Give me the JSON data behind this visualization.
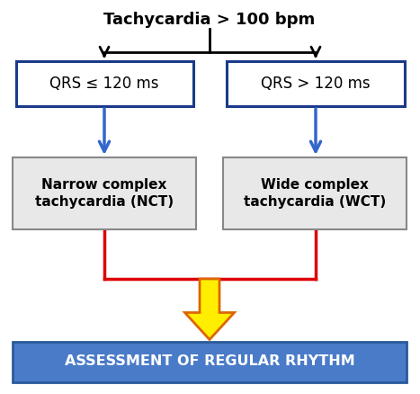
{
  "title": "Tachycardia > 100 bpm",
  "title_fontsize": 13,
  "title_fontweight": "bold",
  "box1_text": "QRS ≤ 120 ms",
  "box2_text": "QRS > 120 ms",
  "box3_text": "Narrow complex\ntachycardia (NCT)",
  "box4_text": "Wide complex\ntachycardia (WCT)",
  "box5_text": "ASSESSMENT OF REGULAR RHYTHM",
  "box1_facecolor": "#ffffff",
  "box1_edgecolor": "#1a3a8a",
  "box2_facecolor": "#ffffff",
  "box2_edgecolor": "#1a3a8a",
  "box3_facecolor": "#e8e8e8",
  "box3_edgecolor": "#888888",
  "box4_facecolor": "#e8e8e8",
  "box4_edgecolor": "#888888",
  "box5_facecolor": "#4a7bc8",
  "box5_edgecolor": "#2a5a9a",
  "box5_textcolor": "#ffffff",
  "black_arrow_color": "#000000",
  "blue_arrow_color": "#3366cc",
  "red_line_color": "#dd0000",
  "yellow_arrow_color": "#ffee00",
  "yellow_arrow_edge": "#dd6600",
  "background_color": "#ffffff"
}
